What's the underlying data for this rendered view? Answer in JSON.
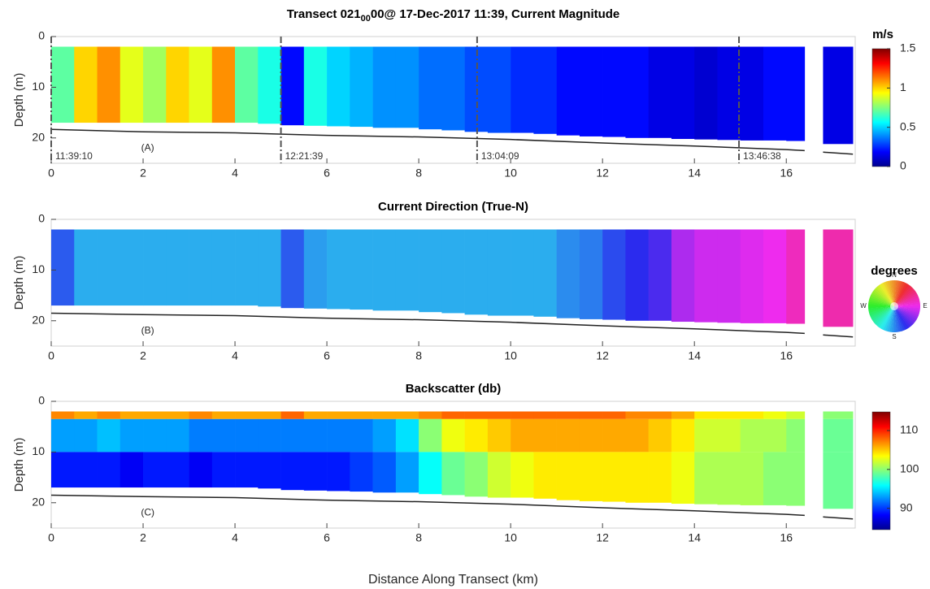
{
  "chart_data": [
    {
      "type": "heatmap",
      "title": "Transect 021",
      "title_subscript": "00",
      "title_end": "00@ 17-Dec-2017 11:39, Current Magnitude",
      "ylabel": "Depth (m)",
      "xlim": [
        0,
        17.5
      ],
      "ylim": [
        0,
        25
      ],
      "y_inverted": true,
      "xticks": [
        0,
        2,
        4,
        6,
        8,
        10,
        12,
        14,
        16
      ],
      "yticks": [
        0,
        10,
        20
      ],
      "panel_label": "(A)",
      "col_start": [
        0,
        0.5,
        1,
        1.5,
        2,
        2.5,
        3,
        3.5,
        4,
        4.5,
        5,
        5.5,
        6,
        6.5,
        7,
        7.5,
        8,
        8.5,
        9,
        9.5,
        10,
        10.5,
        11,
        11.5,
        12,
        12.5,
        13,
        13.5,
        14,
        14.5,
        15,
        15.5,
        16,
        16.8
      ],
      "col_end": [
        0.5,
        1,
        1.5,
        2,
        2.5,
        3,
        3.5,
        4,
        4.5,
        5,
        5.5,
        6,
        6.5,
        7,
        7.5,
        8,
        8.5,
        9,
        9.5,
        10,
        10.5,
        11,
        11.5,
        12,
        12.5,
        13,
        13.5,
        14,
        14.5,
        15,
        15.5,
        16,
        16.4,
        17.45
      ],
      "data_bottom": [
        17,
        17,
        17,
        17,
        17,
        17,
        17,
        17,
        17,
        17.2,
        17.5,
        17.6,
        17.7,
        17.8,
        18,
        18,
        18.3,
        18.5,
        18.8,
        19,
        19,
        19.2,
        19.5,
        19.7,
        19.8,
        20,
        20,
        20.2,
        20.3,
        20.4,
        20.5,
        20.5,
        20.6,
        21.2
      ],
      "layers": [
        {
          "top": 2,
          "values": [
            0.7,
            1.0,
            1.1,
            0.9,
            0.8,
            1.0,
            0.9,
            1.1,
            0.7,
            0.6,
            0.2,
            0.6,
            0.5,
            0.45,
            0.4,
            0.4,
            0.35,
            0.35,
            0.3,
            0.3,
            0.25,
            0.25,
            0.2,
            0.2,
            0.2,
            0.2,
            0.15,
            0.15,
            0.12,
            0.15,
            0.15,
            0.2,
            0.2,
            0.15
          ]
        }
      ],
      "seabed": {
        "x": [
          0,
          2,
          4,
          6,
          8,
          10,
          12,
          14,
          16,
          16.4,
          null,
          16.8,
          17.45
        ],
        "depth": [
          18.3,
          18.8,
          19,
          19.5,
          19.8,
          20.3,
          21,
          21.6,
          22.3,
          22.5,
          null,
          22.8,
          23.2
        ]
      },
      "markers": [
        {
          "x": 0,
          "label": "11:39:10"
        },
        {
          "x": 5.0,
          "label": "12:21:39"
        },
        {
          "x": 9.27,
          "label": "13:04:09"
        },
        {
          "x": 14.97,
          "label": "13:46:38"
        }
      ],
      "colorbar": {
        "label": "m/s",
        "colormap": "jet",
        "lim": [
          0,
          1.5
        ],
        "ticks": [
          0,
          0.5,
          1,
          1.5
        ]
      }
    },
    {
      "type": "heatmap",
      "title": "Current Direction (True-N)",
      "ylabel": "Depth (m)",
      "xlim": [
        0,
        17.5
      ],
      "ylim": [
        0,
        25
      ],
      "y_inverted": true,
      "xticks": [
        0,
        2,
        4,
        6,
        8,
        10,
        12,
        14,
        16
      ],
      "yticks": [
        0,
        10,
        20
      ],
      "panel_label": "(B)",
      "col_start": [
        0,
        0.5,
        1,
        1.5,
        2,
        2.5,
        3,
        3.5,
        4,
        4.5,
        5,
        5.5,
        6,
        6.5,
        7,
        7.5,
        8,
        8.5,
        9,
        9.5,
        10,
        10.5,
        11,
        11.5,
        12,
        12.5,
        13,
        13.5,
        14,
        14.5,
        15,
        15.5,
        16,
        16.8
      ],
      "col_end": [
        0.5,
        1,
        1.5,
        2,
        2.5,
        3,
        3.5,
        4,
        4.5,
        5,
        5.5,
        6,
        6.5,
        7,
        7.5,
        8,
        8.5,
        9,
        9.5,
        10,
        10.5,
        11,
        11.5,
        12,
        12.5,
        13,
        13.5,
        14,
        14.5,
        15,
        15.5,
        16,
        16.4,
        17.45
      ],
      "data_bottom": [
        17,
        17,
        17,
        17,
        17,
        17,
        17,
        17,
        17,
        17.2,
        17.5,
        17.6,
        17.7,
        17.8,
        18,
        18,
        18.3,
        18.5,
        18.8,
        19,
        19,
        19.2,
        19.5,
        19.7,
        19.8,
        20,
        20,
        20.2,
        20.3,
        20.4,
        20.5,
        20.5,
        20.6,
        21.2
      ],
      "layers": [
        {
          "top": 2,
          "values": [
            165,
            190,
            190,
            190,
            190,
            190,
            190,
            190,
            190,
            190,
            165,
            185,
            190,
            190,
            190,
            190,
            190,
            190,
            190,
            190,
            190,
            190,
            180,
            175,
            160,
            150,
            140,
            110,
            100,
            100,
            95,
            90,
            75,
            70
          ]
        }
      ],
      "seabed": {
        "x": [
          0,
          2,
          4,
          6,
          8,
          10,
          12,
          14,
          16,
          16.4,
          null,
          16.8,
          17.45
        ],
        "depth": [
          18.5,
          18.8,
          19,
          19.5,
          19.8,
          20.3,
          21,
          21.6,
          22.3,
          22.5,
          null,
          22.8,
          23.2
        ]
      },
      "colorbar": {
        "label": "degrees",
        "colormap": "compass",
        "directions": [
          "N",
          "E",
          "S",
          "W"
        ]
      }
    },
    {
      "type": "heatmap",
      "title": "Backscatter (db)",
      "xlabel": "Distance Along Transect (km)",
      "ylabel": "Depth (m)",
      "xlim": [
        0,
        17.5
      ],
      "ylim": [
        0,
        25
      ],
      "y_inverted": true,
      "xticks": [
        0,
        2,
        4,
        6,
        8,
        10,
        12,
        14,
        16
      ],
      "yticks": [
        0,
        10,
        20
      ],
      "panel_label": "(C)",
      "col_start": [
        0,
        0.5,
        1,
        1.5,
        2,
        2.5,
        3,
        3.5,
        4,
        4.5,
        5,
        5.5,
        6,
        6.5,
        7,
        7.5,
        8,
        8.5,
        9,
        9.5,
        10,
        10.5,
        11,
        11.5,
        12,
        12.5,
        13,
        13.5,
        14,
        14.5,
        15,
        15.5,
        16,
        16.8
      ],
      "col_end": [
        0.5,
        1,
        1.5,
        2,
        2.5,
        3,
        3.5,
        4,
        4.5,
        5,
        5.5,
        6,
        6.5,
        7,
        7.5,
        8,
        8.5,
        9,
        9.5,
        10,
        10.5,
        11,
        11.5,
        12,
        12.5,
        13,
        13.5,
        14,
        14.5,
        15,
        15.5,
        16,
        16.4,
        17.45
      ],
      "data_bottom": [
        17,
        17,
        17,
        17,
        17,
        17,
        17,
        17,
        17,
        17.2,
        17.5,
        17.6,
        17.7,
        17.8,
        18,
        18,
        18.3,
        18.5,
        18.8,
        19,
        19,
        19.2,
        19.5,
        19.7,
        19.8,
        20,
        20,
        20.2,
        20.3,
        20.4,
        20.5,
        20.5,
        20.6,
        21.2
      ],
      "layers": [
        {
          "top": 2,
          "values": [
            107,
            106,
            107,
            106,
            106,
            106,
            107,
            106,
            106,
            106,
            108,
            106,
            106,
            106,
            106,
            106,
            107,
            108,
            108,
            108,
            108,
            108,
            108,
            108,
            108,
            107,
            107,
            106,
            104,
            104,
            104,
            103,
            102,
            100
          ]
        },
        {
          "top": 3.5,
          "values": [
            93,
            93,
            94,
            93,
            93,
            93,
            92,
            92,
            92,
            92,
            92,
            92,
            92,
            92,
            93,
            95,
            100,
            103,
            104,
            105,
            106,
            106,
            106,
            106,
            106,
            106,
            105,
            104,
            102,
            102,
            101,
            101,
            100,
            99
          ]
        },
        {
          "top": 10,
          "values": [
            89,
            89,
            89,
            88,
            89,
            89,
            88,
            89,
            89,
            89,
            89,
            89,
            89,
            90,
            91,
            93,
            96,
            99,
            100,
            102,
            103,
            104,
            104,
            104,
            104,
            104,
            104,
            103,
            101,
            101,
            101,
            100,
            100,
            99
          ]
        }
      ],
      "seabed": {
        "x": [
          0,
          2,
          4,
          6,
          8,
          10,
          12,
          14,
          16,
          16.4,
          null,
          16.8,
          17.45
        ],
        "depth": [
          18.5,
          18.8,
          19,
          19.5,
          19.8,
          20.3,
          21,
          21.6,
          22.3,
          22.5,
          null,
          22.8,
          23.2
        ]
      },
      "colorbar": {
        "colormap": "jet",
        "lim": [
          84.5,
          114.8
        ],
        "ticks": [
          90,
          100,
          110
        ]
      }
    }
  ]
}
